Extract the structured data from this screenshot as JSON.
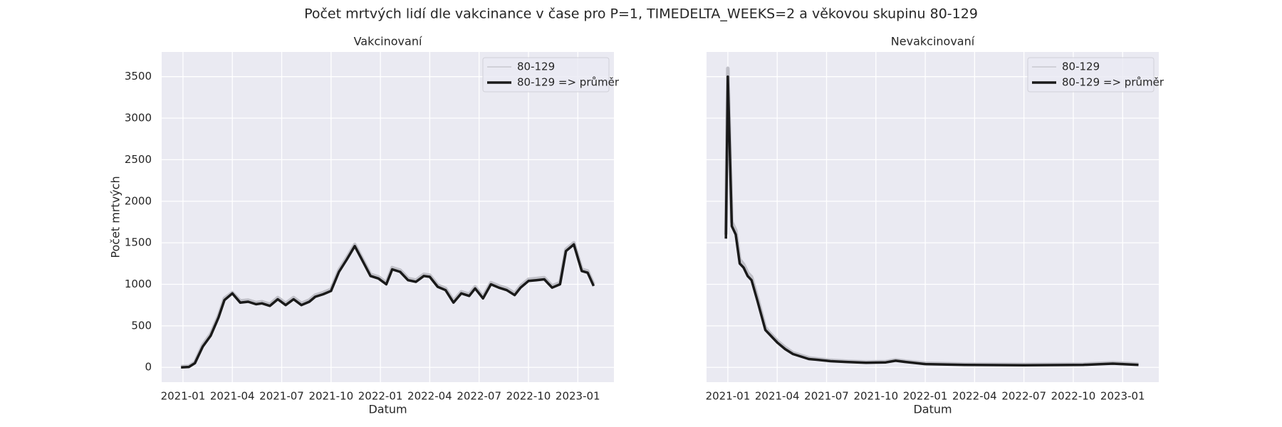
{
  "title": "Počet mrtvých lidí dle vakcinance v čase pro P=1, TIMEDELTA_WEEKS=2 a věkovou skupinu 80-129",
  "chart_data": [
    {
      "type": "line",
      "title": "Vakcinovaní",
      "xlabel": "Datum",
      "ylabel": "Počet mrtvých",
      "xlim": [
        2020.892,
        2023.183
      ],
      "ylim": [
        -178,
        3797
      ],
      "xticks": [
        {
          "value": 2021.0,
          "label": "2021-01"
        },
        {
          "value": 2021.25,
          "label": "2021-04"
        },
        {
          "value": 2021.5,
          "label": "2021-07"
        },
        {
          "value": 2021.75,
          "label": "2021-10"
        },
        {
          "value": 2022.0,
          "label": "2022-01"
        },
        {
          "value": 2022.25,
          "label": "2022-04"
        },
        {
          "value": 2022.5,
          "label": "2022-07"
        },
        {
          "value": 2022.75,
          "label": "2022-10"
        },
        {
          "value": 2023.0,
          "label": "2023-01"
        }
      ],
      "yticks": [
        0,
        500,
        1000,
        1500,
        2000,
        2500,
        3000,
        3500
      ],
      "grid": true,
      "legend": "upper right",
      "x": [
        2020.99,
        2021.03,
        2021.06,
        2021.1,
        2021.14,
        2021.18,
        2021.21,
        2021.25,
        2021.29,
        2021.33,
        2021.37,
        2021.4,
        2021.44,
        2021.48,
        2021.52,
        2021.56,
        2021.6,
        2021.64,
        2021.67,
        2021.71,
        2021.75,
        2021.79,
        2021.83,
        2021.87,
        2021.91,
        2021.95,
        2021.99,
        2022.03,
        2022.06,
        2022.1,
        2022.14,
        2022.18,
        2022.22,
        2022.25,
        2022.29,
        2022.33,
        2022.37,
        2022.41,
        2022.45,
        2022.48,
        2022.52,
        2022.56,
        2022.6,
        2022.64,
        2022.68,
        2022.71,
        2022.75,
        2022.79,
        2022.83,
        2022.87,
        2022.91,
        2022.94,
        2022.98,
        2023.02,
        2023.05,
        2023.08
      ],
      "series": [
        {
          "name": "80-129",
          "color": "#c0c0c8",
          "width": 5,
          "values": [
            10,
            15,
            60,
            270,
            400,
            620,
            830,
            900,
            800,
            810,
            780,
            790,
            760,
            840,
            770,
            840,
            770,
            810,
            870,
            900,
            940,
            1170,
            1320,
            1480,
            1300,
            1120,
            1090,
            1020,
            1200,
            1170,
            1070,
            1050,
            1120,
            1110,
            990,
            950,
            800,
            910,
            880,
            970,
            850,
            1020,
            980,
            950,
            890,
            980,
            1060,
            1070,
            1080,
            980,
            1020,
            1420,
            1500,
            1180,
            1160,
            1000
          ]
        },
        {
          "name": "80-129 => průměr",
          "color": "#1a1a1a",
          "width": 3.5,
          "values": [
            0,
            5,
            50,
            250,
            380,
            600,
            810,
            890,
            780,
            790,
            760,
            770,
            740,
            820,
            750,
            820,
            750,
            790,
            850,
            880,
            920,
            1150,
            1300,
            1460,
            1280,
            1100,
            1070,
            1000,
            1180,
            1150,
            1050,
            1030,
            1100,
            1090,
            970,
            930,
            780,
            890,
            860,
            950,
            830,
            1000,
            960,
            930,
            870,
            960,
            1040,
            1050,
            1060,
            960,
            1000,
            1400,
            1480,
            1160,
            1140,
            980
          ]
        }
      ]
    },
    {
      "type": "line",
      "title": "Nevakcinovaní",
      "xlabel": "Datum",
      "xlim": [
        2020.892,
        2023.183
      ],
      "ylim": [
        -178,
        3797
      ],
      "xticks": [
        {
          "value": 2021.0,
          "label": "2021-01"
        },
        {
          "value": 2021.25,
          "label": "2021-04"
        },
        {
          "value": 2021.5,
          "label": "2021-07"
        },
        {
          "value": 2021.75,
          "label": "2021-10"
        },
        {
          "value": 2022.0,
          "label": "2022-01"
        },
        {
          "value": 2022.25,
          "label": "2022-04"
        },
        {
          "value": 2022.5,
          "label": "2022-07"
        },
        {
          "value": 2022.75,
          "label": "2022-10"
        },
        {
          "value": 2023.0,
          "label": "2023-01"
        }
      ],
      "yticks": [
        0,
        500,
        1000,
        1500,
        2000,
        2500,
        3000,
        3500
      ],
      "grid": true,
      "legend": "upper right",
      "x": [
        2020.99,
        2021.0,
        2021.02,
        2021.04,
        2021.06,
        2021.08,
        2021.1,
        2021.12,
        2021.15,
        2021.19,
        2021.21,
        2021.25,
        2021.29,
        2021.33,
        2021.37,
        2021.41,
        2021.46,
        2021.52,
        2021.6,
        2021.7,
        2021.8,
        2021.85,
        2021.9,
        2022.0,
        2022.2,
        2022.5,
        2022.8,
        2022.95,
        2023.08
      ],
      "series": [
        {
          "name": "80-129",
          "color": "#c0c0c8",
          "width": 5,
          "values": [
            1600,
            3600,
            1750,
            1650,
            1300,
            1240,
            1140,
            1090,
            840,
            480,
            420,
            320,
            240,
            175,
            145,
            115,
            100,
            85,
            75,
            65,
            70,
            90,
            75,
            50,
            40,
            35,
            40,
            55,
            40
          ]
        },
        {
          "name": "80-129 => průměr",
          "color": "#1a1a1a",
          "width": 3.5,
          "values": [
            1550,
            3500,
            1700,
            1600,
            1250,
            1200,
            1100,
            1050,
            800,
            450,
            400,
            300,
            220,
            160,
            130,
            100,
            90,
            75,
            65,
            55,
            60,
            80,
            65,
            40,
            30,
            25,
            30,
            45,
            30
          ]
        }
      ]
    }
  ]
}
